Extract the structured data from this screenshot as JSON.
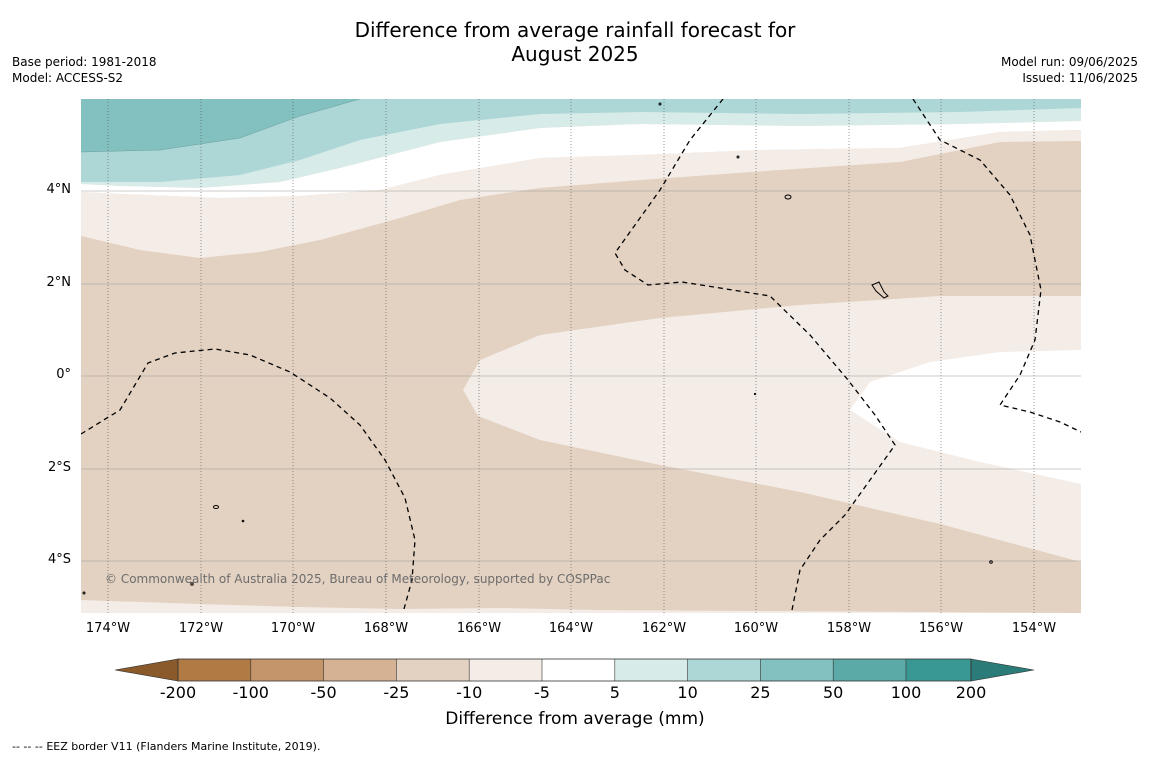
{
  "title_line1": "Difference from average rainfall forecast for",
  "title_line2": "August 2025",
  "base_period": "Base period: 1981-2018",
  "model": "Model: ACCESS-S2",
  "model_run": "Model run: 09/06/2025",
  "issued": "Issued: 11/06/2025",
  "lat_labels": [
    "4°N",
    "2°N",
    "0°",
    "2°S",
    "4°S"
  ],
  "lon_labels": [
    "174°W",
    "172°W",
    "170°W",
    "168°W",
    "166°W",
    "164°W",
    "162°W",
    "160°W",
    "158°W",
    "156°W",
    "154°W"
  ],
  "credit": "© Commonwealth of Australia 2025, Bureau of Meteorology, supported by COSPPac",
  "colorbar": {
    "title": "Difference from average (mm)",
    "values": [
      "-200",
      "-100",
      "-50",
      "-25",
      "-10",
      "-5",
      "5",
      "10",
      "25",
      "50",
      "100",
      "200"
    ],
    "colors": [
      "#8b5a2b",
      "#b07a45",
      "#c4946b",
      "#d5b293",
      "#e3d1c1",
      "#f4ece6",
      "#ffffff",
      "#d7ebe9",
      "#acd7d6",
      "#82c1bf",
      "#5baaa7",
      "#3a9894",
      "#2b7c78"
    ]
  },
  "legend_note": "EEZ border V11 (Flanders Marine Institute, 2019).",
  "legend_dash": "--  --  --"
}
